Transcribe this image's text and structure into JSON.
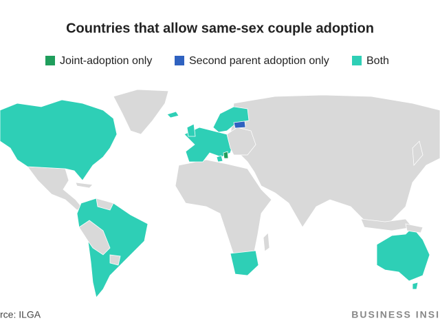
{
  "title": "Countries that allow same-sex couple adoption",
  "legend": [
    {
      "label": "Joint-adoption only",
      "color": "#1f9e5c"
    },
    {
      "label": "Second parent adoption only",
      "color": "#2f62c0"
    },
    {
      "label": "Both",
      "color": "#2ecfb6"
    }
  ],
  "source": "rce: ILGA",
  "brand": "BUSINESS INSI"
}
